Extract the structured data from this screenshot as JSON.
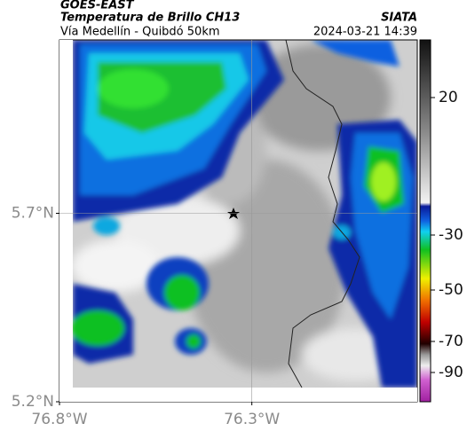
{
  "header": {
    "source": "GOES-EAST",
    "title": "Temperatura de Brillo CH13",
    "subtitle": "Vía Medellín - Quibdó 50km",
    "agency": "SIATA",
    "datetime": "2024-03-21 14:39"
  },
  "map": {
    "xlim": [
      -76.8,
      -75.87
    ],
    "ylim": [
      5.2,
      6.16
    ],
    "xticks": [
      {
        "value": -76.8,
        "label": "76.8°W"
      },
      {
        "value": -76.3,
        "label": "76.3°W"
      }
    ],
    "yticks": [
      {
        "value": 5.2,
        "label": "5.2°N"
      },
      {
        "value": 5.7,
        "label": "5.7°N"
      }
    ],
    "grid": true
  },
  "colorbar": {
    "clim": [
      -109,
      41
    ],
    "ticks": [
      20,
      -30,
      -50,
      -70,
      -90
    ]
  }
}
